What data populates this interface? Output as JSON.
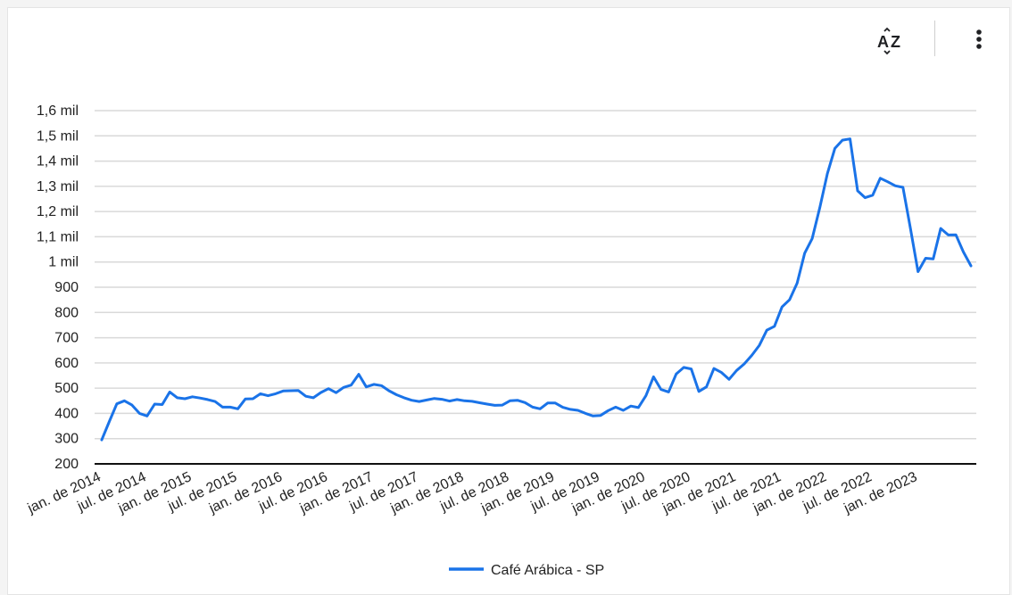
{
  "toolbar": {
    "sort_icon": "sort-az-icon",
    "more_icon": "more-vertical-icon"
  },
  "chart_data": {
    "type": "line",
    "title": "",
    "xlabel": "",
    "ylabel": "",
    "ylim": [
      200,
      1600
    ],
    "yticks": [
      "200",
      "300",
      "400",
      "500",
      "600",
      "700",
      "800",
      "900",
      "1 mil",
      "1,1 mil",
      "1,2 mil",
      "1,3 mil",
      "1,4 mil",
      "1,5 mil",
      "1,6 mil"
    ],
    "xticks": [
      "jan. de 2014",
      "jul. de 2014",
      "jan. de 2015",
      "jul. de 2015",
      "jan. de 2016",
      "jul. de 2016",
      "jan. de 2017",
      "jul. de 2017",
      "jan. de 2018",
      "jul. de 2018",
      "jan. de 2019",
      "jul. de 2019",
      "jan. de 2020",
      "jul. de 2020",
      "jan. de 2021",
      "jul. de 2021",
      "jan. de 2022",
      "jul. de 2022",
      "jan. de 2023"
    ],
    "x_start": "jan. de 2014",
    "x_step": "1 month",
    "grid": true,
    "legend": "bottom",
    "series": [
      {
        "name": "Café Arábica - SP",
        "color": "#1a73e8",
        "values": [
          295,
          368,
          438,
          450,
          433,
          400,
          390,
          437,
          435,
          485,
          462,
          458,
          466,
          461,
          455,
          447,
          425,
          425,
          418,
          457,
          458,
          478,
          470,
          478,
          489,
          490,
          491,
          468,
          462,
          483,
          498,
          482,
          503,
          512,
          555,
          505,
          515,
          510,
          490,
          474,
          462,
          452,
          447,
          453,
          459,
          456,
          449,
          455,
          450,
          448,
          442,
          437,
          432,
          433,
          450,
          452,
          443,
          425,
          418,
          441,
          441,
          424,
          416,
          412,
          400,
          390,
          392,
          411,
          425,
          412,
          429,
          423,
          470,
          545,
          495,
          485,
          556,
          582,
          576,
          487,
          505,
          578,
          562,
          535,
          570,
          596,
          630,
          670,
          730,
          745,
          822,
          850,
          916,
          1035,
          1093,
          1215,
          1350,
          1450,
          1483,
          1488,
          1282,
          1255,
          1265,
          1332,
          1318,
          1302,
          1296,
          1133,
          962,
          1015,
          1012,
          1133,
          1107,
          1108,
          1040,
          985
        ]
      }
    ]
  }
}
